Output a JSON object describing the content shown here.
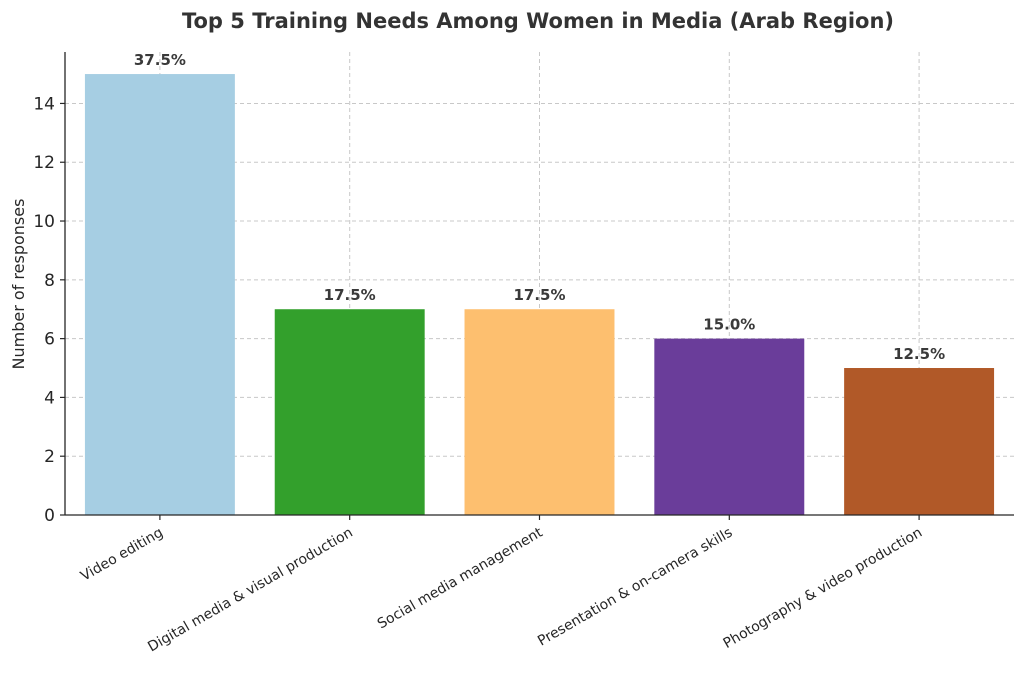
{
  "chart_data": {
    "type": "bar",
    "title": "Top 5 Training Needs Among Women in Media (Arab Region)",
    "xlabel": "",
    "ylabel": "Number of responses",
    "categories": [
      "Video editing",
      "Digital media & visual production",
      "Social media management",
      "Presentation & on-camera skills",
      "Photography & video production"
    ],
    "values": [
      15,
      7,
      7,
      6,
      5
    ],
    "data_labels": [
      "37.5%",
      "17.5%",
      "17.5%",
      "15.0%",
      "12.5%"
    ],
    "colors": [
      "#a6cee3",
      "#33a02c",
      "#fdbf6f",
      "#6a3d9a",
      "#b15928"
    ],
    "ylim": [
      0,
      15.75
    ],
    "yticks": [
      0,
      2,
      4,
      6,
      8,
      10,
      12,
      14
    ],
    "grid": true,
    "legend": "none"
  }
}
